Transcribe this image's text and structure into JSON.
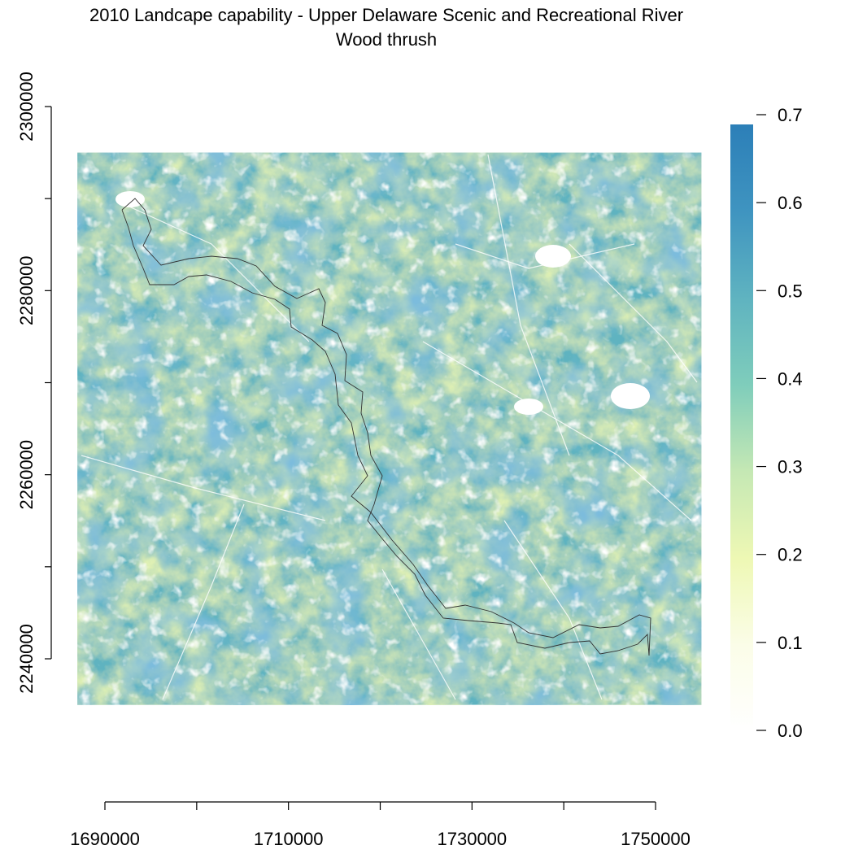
{
  "title": "2010 Landcape capability - Upper Delaware Scenic and Recreational River",
  "subtitle": "Wood thrush",
  "chart_data": {
    "type": "heatmap",
    "title": "2010 Landcape capability - Upper Delaware Scenic and Recreational River",
    "subtitle": "Wood thrush",
    "x_axis": {
      "range": [
        1685000,
        1755000
      ],
      "ticks": [
        1690000,
        1700000,
        1710000,
        1720000,
        1730000,
        1740000,
        1750000
      ],
      "tick_labels": [
        "1690000",
        "",
        "1710000",
        "",
        "1730000",
        "",
        "1750000"
      ]
    },
    "y_axis": {
      "range": [
        2235000,
        2295000
      ],
      "ticks": [
        2240000,
        2250000,
        2260000,
        2270000,
        2280000,
        2290000,
        2300000
      ],
      "tick_labels": [
        "2240000",
        "",
        "2260000",
        "",
        "2280000",
        "",
        "2300000"
      ]
    },
    "raster_extent": {
      "x": [
        1687000,
        1755000
      ],
      "y": [
        2235000,
        2295000
      ]
    },
    "colorbar": {
      "range": [
        0.0,
        0.7
      ],
      "ticks": [
        0.0,
        0.1,
        0.2,
        0.3,
        0.4,
        0.5,
        0.6,
        0.7
      ],
      "tick_labels": [
        "0.0",
        "0.1",
        "0.2",
        "0.3",
        "0.4",
        "0.5",
        "0.6",
        "0.7"
      ],
      "colors": [
        "#ffffff",
        "#fbfde8",
        "#eef8b4",
        "#c5e8b4",
        "#7fcdbb",
        "#5fb3c0",
        "#3f94c0",
        "#2c7fb8"
      ]
    },
    "grid": false,
    "legend_position": "right",
    "river_boundary_color": "#333333",
    "nodata_color": "#ffffff"
  }
}
